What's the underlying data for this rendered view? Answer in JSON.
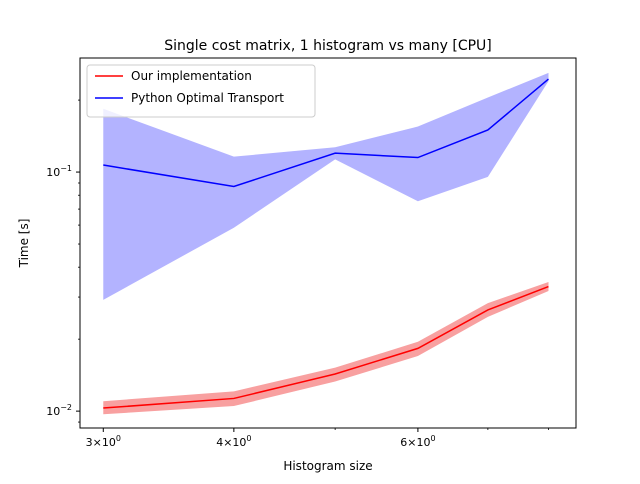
{
  "chart_data": {
    "type": "line",
    "title": "Single cost matrix, 1 histogram vs many [CPU]",
    "xlabel": "Histogram size",
    "ylabel": "Time [s]",
    "xscale": "log",
    "yscale": "log",
    "xlim": [
      2.85,
      8.5
    ],
    "ylim": [
      0.0085,
      0.3
    ],
    "grid": false,
    "legend_position": "upper left",
    "x": [
      3,
      4,
      5,
      6,
      7,
      8
    ],
    "x_tick_labels": [
      {
        "value": 3,
        "base": "3×10",
        "exp": "0"
      },
      {
        "value": 4,
        "base": "4×10",
        "exp": "0"
      },
      {
        "value": 6,
        "base": "6×10",
        "exp": "0"
      }
    ],
    "y_tick_labels": [
      {
        "value": 0.01,
        "base": "10",
        "exp": "−2"
      },
      {
        "value": 0.1,
        "base": "10",
        "exp": "−1"
      }
    ],
    "series": [
      {
        "name": "Our implementation",
        "color": "#ff0000",
        "band_color": "#f8a0a0",
        "values": [
          0.0103,
          0.0113,
          0.0143,
          0.0183,
          0.0265,
          0.0332
        ],
        "lower": [
          0.0097,
          0.0105,
          0.0133,
          0.017,
          0.0248,
          0.0318
        ],
        "upper": [
          0.011,
          0.0121,
          0.0152,
          0.0195,
          0.0283,
          0.0347
        ]
      },
      {
        "name": "Python Optimal Transport",
        "color": "#0000ff",
        "band_color": "#b3b3ff",
        "values": [
          0.107,
          0.087,
          0.12,
          0.115,
          0.15,
          0.245
        ],
        "lower": [
          0.0292,
          0.0585,
          0.113,
          0.0755,
          0.0955,
          0.24
        ],
        "upper": [
          0.184,
          0.116,
          0.127,
          0.155,
          0.205,
          0.26
        ]
      }
    ]
  }
}
